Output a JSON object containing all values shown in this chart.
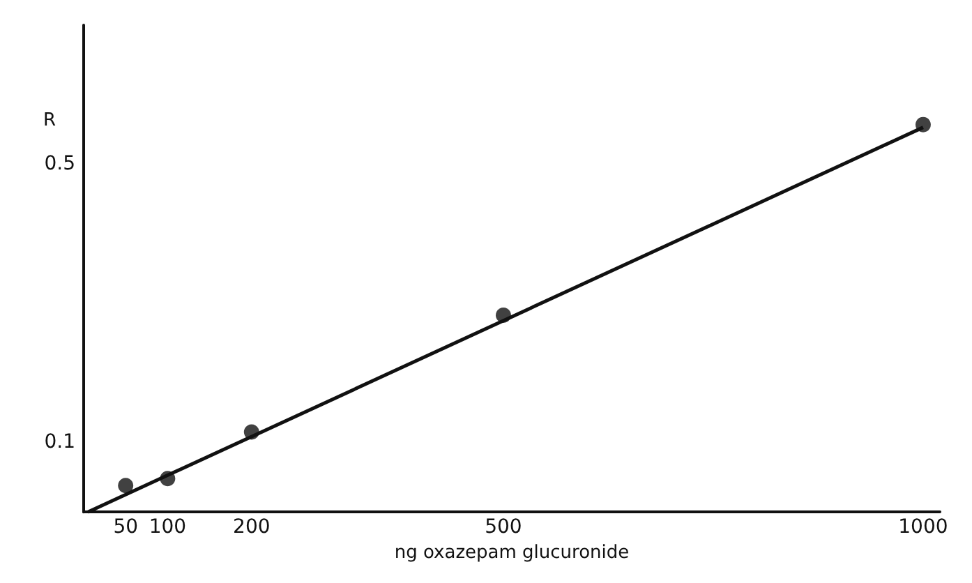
{
  "chart_data": {
    "type": "scatter",
    "xlabel": "ng oxazepam glucuronide",
    "ylabel": "R",
    "x": [
      50,
      100,
      200,
      500,
      1000
    ],
    "series": [
      {
        "color": "#111111",
        "values": [
          0.038,
          0.048,
          0.115,
          0.283,
          0.557
        ],
        "marker": "circle"
      },
      {
        "type": "line",
        "color": "#111111",
        "x": [
          5,
          1000
        ],
        "values": [
          0,
          0.553
        ],
        "marker": "none",
        "line_style": "solid"
      }
    ],
    "xlim": [
      0,
      1020
    ],
    "ylim": [
      0,
      0.7
    ],
    "xticks": [
      50,
      100,
      200,
      500,
      1000
    ],
    "yticks": [
      0.1,
      0.5
    ],
    "grid": false
  }
}
